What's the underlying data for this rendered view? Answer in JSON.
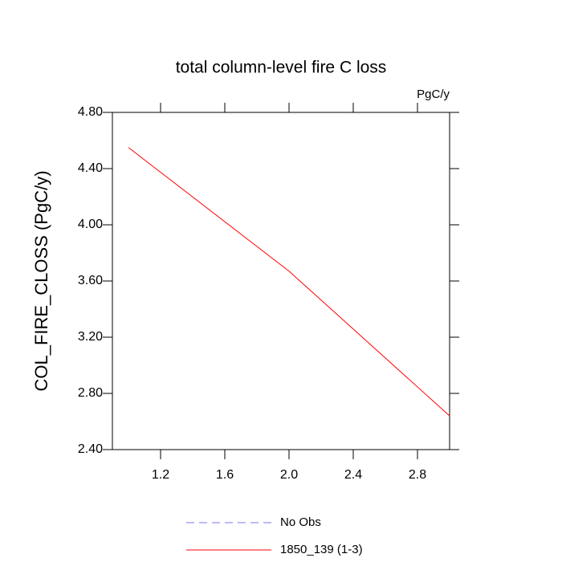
{
  "chart_data": {
    "type": "line",
    "title": "total column-level fire C loss",
    "units_label": "PgC/y",
    "y_label": "COL_FIRE_CLOSS  (PgC/y)",
    "x": [
      1.0,
      2.0,
      3.0
    ],
    "series": [
      {
        "name": "No Obs",
        "color": "#7777ee",
        "dashed": true,
        "values": [
          null,
          null,
          null
        ]
      },
      {
        "name": "1850_139 (1-3)",
        "color": "#ff0000",
        "dashed": false,
        "values": [
          4.55,
          3.67,
          2.64
        ]
      }
    ],
    "xlim": [
      0.9,
      3.0
    ],
    "xticks": [
      1.2,
      1.6,
      {
        "value": 2.0,
        "label": "2.0"
      },
      2.4,
      2.8
    ],
    "ylim": [
      2.4,
      4.8
    ],
    "yticks": [
      {
        "value": 2.4,
        "label": "2.40"
      },
      {
        "value": 2.8,
        "label": "2.80"
      },
      {
        "value": 3.2,
        "label": "3.20"
      },
      {
        "value": 3.6,
        "label": "3.60"
      },
      {
        "value": 4.0,
        "label": "4.00"
      },
      {
        "value": 4.4,
        "label": "4.40"
      },
      {
        "value": 4.8,
        "label": "4.80"
      }
    ]
  }
}
